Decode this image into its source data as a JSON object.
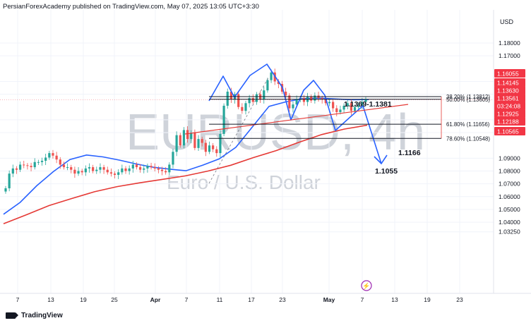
{
  "header": {
    "text": "PersianForexAcademy published on TradingView.com, May 07, 2025 13:05 UTC+3:30"
  },
  "footer": {
    "brand": "TradingView"
  },
  "watermark": {
    "symbol": "EURUSD, 4h",
    "name": "Euro / U.S. Dollar"
  },
  "currency": "USD",
  "colors": {
    "candle_up": "#26a69a",
    "candle_down": "#ef5350",
    "ema_fast": "#2962ff",
    "ema_slow": "#e53935",
    "pattern": "#2962ff",
    "badge_red": "#f23645"
  },
  "chart_data": {
    "type": "candlestick",
    "ylim": [
      1.0285,
      1.1935
    ],
    "x_ticks": [
      "7",
      "13",
      "19",
      "25",
      "Apr",
      "7",
      "11",
      "17",
      "23",
      "May",
      "7",
      "13",
      "19",
      "23"
    ],
    "y_ticks": [
      "1.18000",
      "1.17000",
      "1.15000",
      "1.14000",
      "1.12000",
      "1.11000",
      "1.09000",
      "1.08000",
      "1.07000",
      "1.06000",
      "1.05000",
      "1.04000",
      "1.03250"
    ],
    "price_badges": [
      {
        "label": "1.16055",
        "value": 1.16055
      },
      {
        "label": "1.14145",
        "value": 1.14145
      },
      {
        "label": "1.13630",
        "value": 1.1363
      },
      {
        "label": "1.13561",
        "value": 1.13561
      },
      {
        "label": "03:24:08",
        "value": 1.13265
      },
      {
        "label": "1.12925",
        "value": 1.12925
      },
      {
        "label": "1.12188",
        "value": 1.12188
      },
      {
        "label": "1.10565",
        "value": 1.10565
      }
    ],
    "fib_levels": [
      {
        "label": "38.20% (1.13812)",
        "value": 1.13812
      },
      {
        "label": "50.00% (1.13605)",
        "value": 1.13605
      },
      {
        "label": "61.80% (1.11656)",
        "value": 1.11656
      },
      {
        "label": "78.60% (1.10548)",
        "value": 1.10548
      }
    ],
    "annotations": [
      {
        "text": "1.1369-1.1381",
        "value": 1.1381
      },
      {
        "text": "1.1166",
        "value": 1.1166
      },
      {
        "text": "1.1055",
        "value": 1.1055
      }
    ],
    "ema_fast": [
      1.0462,
      1.0555,
      1.0685,
      1.0795,
      1.089,
      1.0925,
      1.091,
      1.0885,
      1.0855,
      1.083,
      1.0815,
      1.0802,
      1.0845,
      1.0895,
      1.0985,
      1.1145,
      1.1305,
      1.134,
      1.1365,
      1.137,
      1.1363,
      1.1357,
      1.1358
    ],
    "ema_slow": [
      1.0388,
      1.0458,
      1.053,
      1.0585,
      1.0638,
      1.0678,
      1.0708,
      1.0735,
      1.0762,
      1.08,
      1.0845,
      1.0905,
      1.096,
      1.1025,
      1.1085,
      1.1128,
      1.1158
    ],
    "closes": [
      1.0665,
      1.078,
      1.082,
      1.081,
      1.085,
      1.0845,
      1.084,
      1.083,
      1.087,
      1.087,
      1.088,
      1.0905,
      1.094,
      1.092,
      1.089,
      1.085,
      1.083,
      1.083,
      1.081,
      1.078,
      1.08,
      1.079,
      1.082,
      1.083,
      1.08,
      1.081,
      1.083,
      1.081,
      1.079,
      1.078,
      1.077,
      1.079,
      1.082,
      1.08,
      1.082,
      1.085,
      1.083,
      1.081,
      1.082,
      1.084,
      1.083,
      1.082,
      1.081,
      1.08,
      1.079,
      1.085,
      1.095,
      1.108,
      1.1,
      1.112,
      1.105,
      1.11,
      1.098,
      1.105,
      1.102,
      1.095,
      1.1,
      1.097,
      1.094,
      1.109,
      1.131,
      1.142,
      1.136,
      1.14,
      1.13,
      1.127,
      1.133,
      1.137,
      1.134,
      1.14,
      1.136,
      1.143,
      1.151,
      1.157,
      1.15,
      1.148,
      1.142,
      1.139,
      1.129,
      1.132,
      1.136,
      1.137,
      1.134,
      1.138,
      1.135,
      1.139,
      1.137,
      1.136,
      1.133,
      1.134,
      1.129,
      1.126,
      1.128,
      1.131,
      1.133,
      1.127,
      1.13,
      1.131,
      1.134,
      1.136
    ]
  }
}
